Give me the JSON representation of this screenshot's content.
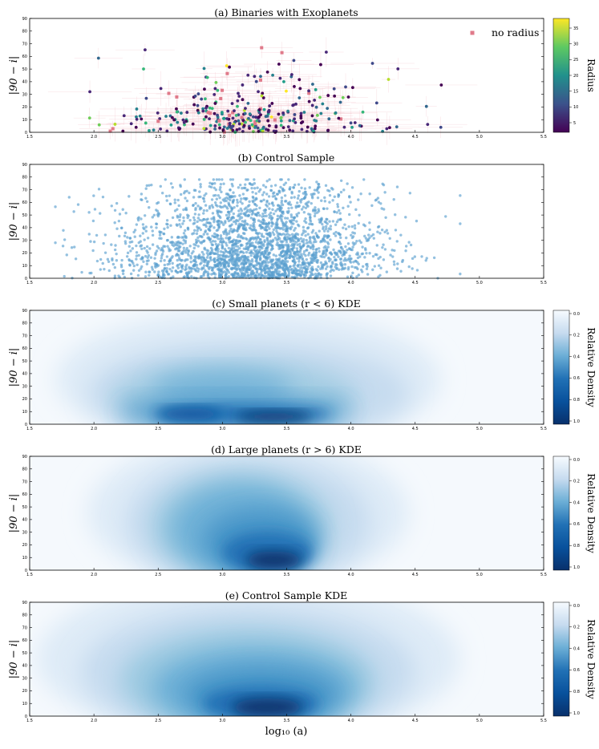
{
  "figure": {
    "xlabel": "log₁₀ (a)",
    "ylabel": "|90 − i|"
  },
  "chart_data": [
    {
      "type": "scatter",
      "title": "(a) Binaries with Exoplanets",
      "xlabel": "",
      "ylabel": "|90 − i|",
      "xlim": [
        1.5,
        5.5
      ],
      "ylim": [
        0,
        90
      ],
      "xticks": [
        "1.5",
        "2.0",
        "2.5",
        "3.0",
        "3.5",
        "4.0",
        "4.5",
        "5.0",
        "5.5"
      ],
      "yticks": [
        "0",
        "10",
        "20",
        "30",
        "40",
        "50",
        "60",
        "70",
        "80",
        "90"
      ],
      "colormap": "viridis",
      "colorbar": {
        "label": "Radius",
        "range": [
          0,
          35
        ],
        "ticks": [
          "5",
          "10",
          "15",
          "20",
          "25",
          "30",
          "35"
        ]
      },
      "legend": {
        "entry": "no radius",
        "color": "#e07a8a",
        "location": "top-right"
      },
      "n_points": 330,
      "note": "points show error bars in light pink; many concentrated at 2.5–4.0, |90-i| < 30"
    },
    {
      "type": "scatter",
      "title": "(b) Control Sample",
      "xlabel": "",
      "ylabel": "|90 − i|",
      "xlim": [
        1.5,
        5.5
      ],
      "ylim": [
        0,
        90
      ],
      "xticks": [
        "1.5",
        "2.0",
        "2.5",
        "3.0",
        "3.5",
        "4.0",
        "4.5",
        "5.0",
        "5.5"
      ],
      "yticks": [
        "0",
        "10",
        "20",
        "30",
        "40",
        "50",
        "60",
        "70",
        "80",
        "90"
      ],
      "color": "#5aa0cf",
      "n_points": 2600,
      "x_range_observed": [
        1.7,
        4.85
      ],
      "y_range_observed": [
        0,
        78
      ]
    },
    {
      "type": "heatmap",
      "subtype": "kde",
      "title": "(c) Small planets (r < 6) KDE",
      "ylabel": "|90 − i|",
      "xlim": [
        1.5,
        5.5
      ],
      "ylim": [
        0,
        90
      ],
      "xticks": [
        "1.5",
        "2.0",
        "2.5",
        "3.0",
        "3.5",
        "4.0",
        "4.5",
        "5.0",
        "5.5"
      ],
      "yticks": [
        "0",
        "10",
        "20",
        "30",
        "40",
        "50",
        "60",
        "70",
        "80",
        "90"
      ],
      "colormap": "Blues",
      "colorbar": {
        "label": "Relative Density",
        "ticks": [
          "0.0",
          "0.2",
          "0.4",
          "0.6",
          "0.8",
          "1.0"
        ]
      },
      "peaks": [
        {
          "x": 3.4,
          "y": 6,
          "density": 1.0
        },
        {
          "x": 2.8,
          "y": 8,
          "density": 0.75
        },
        {
          "x": 3.1,
          "y": 28,
          "density": 0.35
        }
      ]
    },
    {
      "type": "heatmap",
      "subtype": "kde",
      "title": "(d) Large planets (r > 6) KDE",
      "ylabel": "|90 − i|",
      "xlim": [
        1.5,
        5.5
      ],
      "ylim": [
        0,
        90
      ],
      "xticks": [
        "1.5",
        "2.0",
        "2.5",
        "3.0",
        "3.5",
        "4.0",
        "4.5",
        "5.0",
        "5.5"
      ],
      "yticks": [
        "0",
        "10",
        "20",
        "30",
        "40",
        "50",
        "60",
        "70",
        "80",
        "90"
      ],
      "colormap": "Blues",
      "colorbar": {
        "label": "Relative Density",
        "ticks": [
          "0.0",
          "0.2",
          "0.4",
          "0.6",
          "0.8",
          "1.0"
        ]
      },
      "peaks": [
        {
          "x": 3.4,
          "y": 8,
          "density": 1.0
        },
        {
          "x": 3.1,
          "y": 40,
          "density": 0.55
        }
      ]
    },
    {
      "type": "heatmap",
      "subtype": "kde",
      "title": "(e) Control Sample KDE",
      "ylabel": "|90 − i|",
      "xlabel": "log₁₀ (a)",
      "xlim": [
        1.5,
        5.5
      ],
      "ylim": [
        0,
        90
      ],
      "xticks": [
        "1.5",
        "2.0",
        "2.5",
        "3.0",
        "3.5",
        "4.0",
        "4.5",
        "5.0",
        "5.5"
      ],
      "yticks": [
        "0",
        "10",
        "20",
        "30",
        "40",
        "50",
        "60",
        "70",
        "80",
        "90"
      ],
      "colormap": "Blues",
      "colorbar": {
        "label": "Relative Density",
        "ticks": [
          "0.0",
          "0.2",
          "0.4",
          "0.6",
          "0.8",
          "1.0"
        ]
      },
      "peaks": [
        {
          "x": 3.35,
          "y": 8,
          "density": 1.0
        },
        {
          "x": 3.2,
          "y": 30,
          "density": 0.6
        }
      ]
    }
  ]
}
